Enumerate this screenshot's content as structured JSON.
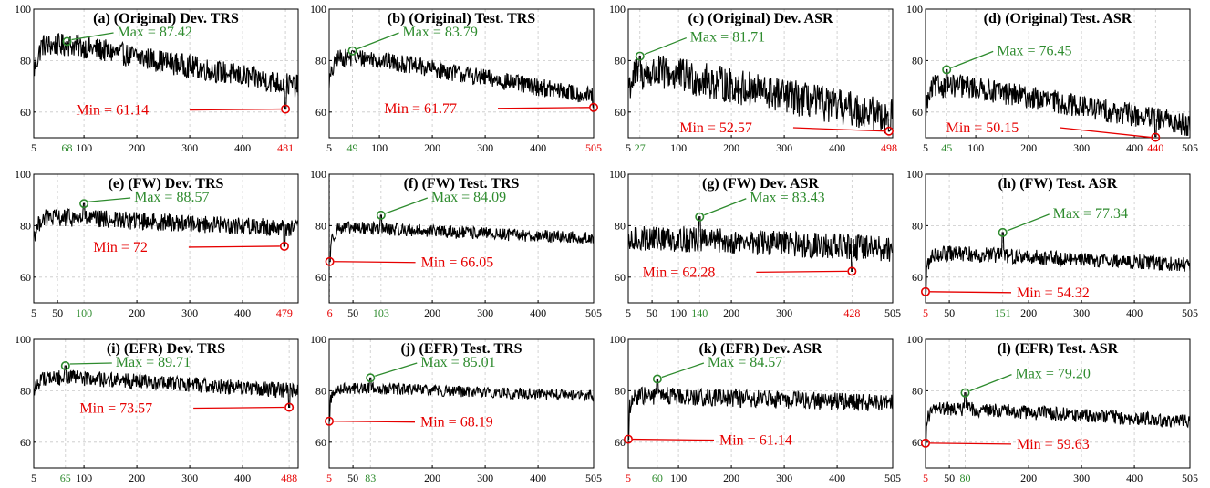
{
  "figure": {
    "colors": {
      "line": "#000000",
      "max": "#2e8b2e",
      "min": "#e60000",
      "grid": "#c8c8c8"
    }
  },
  "chart_data": [
    {
      "type": "line",
      "title": "(a) (Original) Dev. TRS",
      "xlim": [
        5,
        505
      ],
      "ylim": [
        50,
        100
      ],
      "yticks": [
        60,
        80,
        100
      ],
      "xticks": [
        5,
        100,
        200,
        300,
        400
      ],
      "x_range": [
        5,
        505
      ],
      "max": {
        "x": 68,
        "y": 87.42,
        "label": "Max = 87.42"
      },
      "min": {
        "x": 481,
        "y": 61.14,
        "label": "Min = 61.14"
      },
      "trend": {
        "start": 76,
        "peak": 86,
        "end": 70,
        "noise": 4.5
      },
      "xtick_highlights": [
        {
          "value": 68,
          "color": "max"
        },
        {
          "value": 481,
          "color": "min"
        }
      ]
    },
    {
      "type": "line",
      "title": "(b) (Original) Test. TRS",
      "xlim": [
        5,
        505
      ],
      "ylim": [
        50,
        100
      ],
      "yticks": [
        60,
        80,
        100
      ],
      "xticks": [
        5,
        100,
        200,
        300,
        400
      ],
      "x_range": [
        5,
        505
      ],
      "max": {
        "x": 49,
        "y": 83.79,
        "label": "Max = 83.79"
      },
      "min": {
        "x": 505,
        "y": 61.77,
        "label": "Min = 61.77"
      },
      "trend": {
        "start": 72,
        "peak": 81,
        "end": 66,
        "noise": 3.5
      },
      "xtick_highlights": [
        {
          "value": 49,
          "color": "max"
        },
        {
          "value": 505,
          "color": "min"
        }
      ]
    },
    {
      "type": "line",
      "title": "(c) (Original) Dev. ASR",
      "xlim": [
        5,
        505
      ],
      "ylim": [
        50,
        100
      ],
      "yticks": [
        60,
        80,
        100
      ],
      "xticks": [
        5,
        100,
        200,
        300,
        400
      ],
      "x_range": [
        5,
        505
      ],
      "max": {
        "x": 27,
        "y": 81.71,
        "label": "Max = 81.71"
      },
      "min": {
        "x": 498,
        "y": 52.57,
        "label": "Min = 52.57"
      },
      "trend": {
        "start": 70,
        "peak": 75,
        "end": 58,
        "noise": 7
      },
      "xtick_highlights": [
        {
          "value": 27,
          "color": "max"
        },
        {
          "value": 498,
          "color": "min"
        }
      ]
    },
    {
      "type": "line",
      "title": "(d) (Original) Test. ASR",
      "xlim": [
        5,
        505
      ],
      "ylim": [
        50,
        100
      ],
      "yticks": [
        60,
        80,
        100
      ],
      "xticks": [
        5,
        100,
        200,
        300,
        400,
        505
      ],
      "x_range": [
        5,
        505
      ],
      "max": {
        "x": 45,
        "y": 76.45,
        "label": "Max = 76.45"
      },
      "min": {
        "x": 440,
        "y": 50.15,
        "label": "Min = 50.15"
      },
      "trend": {
        "start": 62,
        "peak": 70,
        "end": 55,
        "noise": 4.5
      },
      "xtick_highlights": [
        {
          "value": 45,
          "color": "max"
        },
        {
          "value": 440,
          "color": "min"
        }
      ]
    },
    {
      "type": "line",
      "title": "(e) (FW) Dev. TRS",
      "xlim": [
        5,
        505
      ],
      "ylim": [
        50,
        100
      ],
      "yticks": [
        60,
        80,
        100
      ],
      "xticks": [
        5,
        50,
        200,
        300,
        400
      ],
      "x_range": [
        5,
        505
      ],
      "max": {
        "x": 100,
        "y": 88.57,
        "label": "Max = 88.57"
      },
      "min": {
        "x": 479,
        "y": 72,
        "label": "Min = 72"
      },
      "trend": {
        "start": 76,
        "peak": 83,
        "end": 79,
        "noise": 3.5
      },
      "xtick_highlights": [
        {
          "value": 100,
          "color": "max"
        },
        {
          "value": 479,
          "color": "min"
        }
      ]
    },
    {
      "type": "line",
      "title": "(f) (FW) Test. TRS",
      "xlim": [
        5,
        505
      ],
      "ylim": [
        50,
        100
      ],
      "yticks": [
        60,
        80,
        100
      ],
      "xticks": [
        50,
        200,
        300,
        400,
        505
      ],
      "x_range": [
        5,
        505
      ],
      "max": {
        "x": 103,
        "y": 84.09,
        "label": "Max = 84.09"
      },
      "min": {
        "x": 6,
        "y": 66.05,
        "label": "Min = 66.05"
      },
      "trend": {
        "start": 72,
        "peak": 79,
        "end": 75,
        "noise": 2.5
      },
      "xtick_highlights": [
        {
          "value": 6,
          "color": "min"
        },
        {
          "value": 103,
          "color": "max"
        }
      ]
    },
    {
      "type": "line",
      "title": "(g) (FW) Dev. ASR",
      "xlim": [
        5,
        505
      ],
      "ylim": [
        50,
        100
      ],
      "yticks": [
        60,
        80,
        100
      ],
      "xticks": [
        5,
        50,
        100,
        200,
        300,
        505
      ],
      "x_range": [
        5,
        505
      ],
      "max": {
        "x": 140,
        "y": 83.43,
        "label": "Max = 83.43"
      },
      "min": {
        "x": 428,
        "y": 62.28,
        "label": "Min = 62.28"
      },
      "trend": {
        "start": 72,
        "peak": 75,
        "end": 71,
        "noise": 5
      },
      "xtick_highlights": [
        {
          "value": 140,
          "color": "max"
        },
        {
          "value": 428,
          "color": "min"
        }
      ]
    },
    {
      "type": "line",
      "title": "(h) (FW) Test. ASR",
      "xlim": [
        5,
        505
      ],
      "ylim": [
        50,
        100
      ],
      "yticks": [
        60,
        80,
        100
      ],
      "xticks": [
        50,
        200,
        300,
        400,
        505
      ],
      "x_range": [
        5,
        505
      ],
      "max": {
        "x": 151,
        "y": 77.34,
        "label": "Max = 77.34"
      },
      "min": {
        "x": 5,
        "y": 54.32,
        "label": "Min = 54.32"
      },
      "trend": {
        "start": 63,
        "peak": 69,
        "end": 65,
        "noise": 3
      },
      "xtick_highlights": [
        {
          "value": 5,
          "color": "min"
        },
        {
          "value": 151,
          "color": "max"
        }
      ]
    },
    {
      "type": "line",
      "title": "(i) (EFR) Dev. TRS",
      "xlim": [
        5,
        505
      ],
      "ylim": [
        50,
        100
      ],
      "yticks": [
        60,
        80,
        100
      ],
      "xticks": [
        5,
        100,
        200,
        300,
        400
      ],
      "x_range": [
        5,
        505
      ],
      "max": {
        "x": 65,
        "y": 89.71,
        "label": "Max = 89.71"
      },
      "min": {
        "x": 488,
        "y": 73.57,
        "label": "Min = 73.57"
      },
      "trend": {
        "start": 80,
        "peak": 85,
        "end": 80,
        "noise": 3
      },
      "xtick_highlights": [
        {
          "value": 65,
          "color": "max"
        },
        {
          "value": 488,
          "color": "min"
        }
      ]
    },
    {
      "type": "line",
      "title": "(j) (EFR) Test. TRS",
      "xlim": [
        5,
        505
      ],
      "ylim": [
        50,
        100
      ],
      "yticks": [
        60,
        80,
        100
      ],
      "xticks": [
        50,
        200,
        300,
        400,
        505
      ],
      "x_range": [
        5,
        505
      ],
      "max": {
        "x": 83,
        "y": 85.01,
        "label": "Max = 85.01"
      },
      "min": {
        "x": 5,
        "y": 68.19,
        "label": "Min = 68.19"
      },
      "trend": {
        "start": 76,
        "peak": 81,
        "end": 78,
        "noise": 2.2
      },
      "xtick_highlights": [
        {
          "value": 5,
          "color": "min"
        },
        {
          "value": 83,
          "color": "max"
        }
      ]
    },
    {
      "type": "line",
      "title": "(k) (EFR) Dev. ASR",
      "xlim": [
        5,
        505
      ],
      "ylim": [
        50,
        100
      ],
      "yticks": [
        60,
        80,
        100
      ],
      "xticks": [
        100,
        200,
        300,
        400,
        505
      ],
      "x_range": [
        5,
        505
      ],
      "max": {
        "x": 60,
        "y": 84.57,
        "label": "Max = 84.57"
      },
      "min": {
        "x": 5,
        "y": 61.14,
        "label": "Min = 61.14"
      },
      "trend": {
        "start": 72,
        "peak": 78,
        "end": 75,
        "noise": 3.5
      },
      "xtick_highlights": [
        {
          "value": 5,
          "color": "min"
        },
        {
          "value": 60,
          "color": "max"
        }
      ]
    },
    {
      "type": "line",
      "title": "(l) (EFR) Test. ASR",
      "xlim": [
        5,
        505
      ],
      "ylim": [
        50,
        100
      ],
      "yticks": [
        60,
        80,
        100
      ],
      "xticks": [
        50,
        200,
        300,
        400,
        505
      ],
      "x_range": [
        5,
        505
      ],
      "max": {
        "x": 80,
        "y": 79.2,
        "label": "Max = 79.20"
      },
      "min": {
        "x": 5,
        "y": 59.63,
        "label": "Min = 59.63"
      },
      "trend": {
        "start": 68,
        "peak": 73,
        "end": 68,
        "noise": 2.8
      },
      "xtick_highlights": [
        {
          "value": 5,
          "color": "min"
        },
        {
          "value": 80,
          "color": "max"
        }
      ]
    }
  ]
}
